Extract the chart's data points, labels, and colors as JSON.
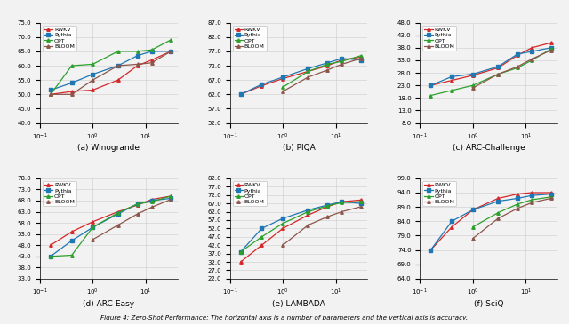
{
  "x_params": [
    0.16,
    0.4,
    1.0,
    3.0,
    7.0,
    13.0,
    30.0
  ],
  "models": [
    "RWKV",
    "Pythia",
    "OPT",
    "BLOOM"
  ],
  "colors": [
    "#d62728",
    "#1f77b4",
    "#2ca02c",
    "#8c564b"
  ],
  "subplots": [
    {
      "title": "(a) Winogrande",
      "ylim": [
        40.0,
        75.0
      ],
      "yticks": [
        40.0,
        45.0,
        50.0,
        55.0,
        60.0,
        65.0,
        70.0,
        75.0
      ],
      "legend_loc": "upper left",
      "data": {
        "RWKV": [
          50.0,
          51.0,
          51.5,
          55.0,
          60.0,
          62.0,
          65.0
        ],
        "Pythia": [
          51.5,
          54.0,
          57.0,
          60.0,
          63.5,
          65.0,
          65.0
        ],
        "OPT": [
          50.0,
          60.0,
          60.5,
          65.0,
          65.0,
          65.5,
          69.0
        ],
        "BLOOM": [
          50.0,
          50.0,
          55.0,
          60.0,
          60.5,
          61.0,
          65.0
        ]
      }
    },
    {
      "title": "(b) PIQA",
      "ylim": [
        52.0,
        87.0
      ],
      "yticks": [
        52.0,
        57.0,
        62.0,
        67.0,
        72.0,
        77.0,
        82.0,
        87.0
      ],
      "legend_loc": "upper left",
      "data": {
        "RWKV": [
          62.0,
          65.0,
          67.5,
          70.0,
          72.0,
          74.0,
          75.0
        ],
        "Pythia": [
          62.0,
          65.5,
          68.0,
          71.0,
          73.0,
          74.5,
          74.0
        ],
        "OPT": [
          null,
          null,
          64.5,
          70.0,
          72.5,
          73.5,
          75.5
        ],
        "BLOOM": [
          null,
          null,
          63.0,
          68.0,
          70.5,
          72.5,
          74.5
        ]
      }
    },
    {
      "title": "(c) ARC-Challenge",
      "ylim": [
        8.0,
        48.0
      ],
      "yticks": [
        8.0,
        13.0,
        18.0,
        23.0,
        28.0,
        33.0,
        38.0,
        43.0,
        48.0
      ],
      "legend_loc": "upper left",
      "data": {
        "RWKV": [
          23.0,
          25.0,
          27.0,
          30.0,
          35.0,
          38.0,
          40.0
        ],
        "Pythia": [
          23.0,
          26.5,
          27.5,
          30.5,
          35.5,
          36.5,
          38.0
        ],
        "OPT": [
          19.0,
          21.0,
          23.0,
          27.5,
          30.0,
          33.0,
          37.5
        ],
        "BLOOM": [
          null,
          null,
          22.0,
          27.5,
          30.5,
          33.5,
          37.0
        ]
      }
    },
    {
      "title": "(d) ARC-Easy",
      "ylim": [
        33.0,
        78.0
      ],
      "yticks": [
        33.0,
        38.0,
        43.0,
        48.0,
        53.0,
        58.0,
        63.0,
        68.0,
        73.0,
        78.0
      ],
      "legend_loc": "upper left",
      "data": {
        "RWKV": [
          48.0,
          54.0,
          58.5,
          63.0,
          66.0,
          68.5,
          70.0
        ],
        "Pythia": [
          43.0,
          50.0,
          56.0,
          62.0,
          66.5,
          68.0,
          69.0
        ],
        "OPT": [
          43.0,
          43.5,
          56.0,
          62.5,
          66.5,
          67.5,
          70.0
        ],
        "BLOOM": [
          null,
          null,
          50.5,
          57.0,
          62.0,
          65.0,
          68.5
        ]
      }
    },
    {
      "title": "(e) LAMBADA",
      "ylim": [
        22.0,
        82.0
      ],
      "yticks": [
        22.0,
        27.0,
        32.0,
        37.0,
        42.0,
        47.0,
        52.0,
        57.0,
        62.0,
        67.0,
        72.0,
        77.0,
        82.0
      ],
      "legend_loc": "upper left",
      "data": {
        "RWKV": [
          32.0,
          42.0,
          52.0,
          60.0,
          65.0,
          68.0,
          69.0
        ],
        "Pythia": [
          38.0,
          52.0,
          58.0,
          63.0,
          66.0,
          68.0,
          67.0
        ],
        "OPT": [
          38.0,
          47.0,
          55.0,
          62.0,
          65.5,
          67.5,
          68.0
        ],
        "BLOOM": [
          null,
          null,
          42.0,
          54.0,
          59.0,
          62.0,
          65.0
        ]
      }
    },
    {
      "title": "(f) SciQ",
      "ylim": [
        64.0,
        99.0
      ],
      "yticks": [
        64.0,
        69.0,
        74.0,
        79.0,
        84.0,
        89.0,
        94.0,
        99.0
      ],
      "legend_loc": "upper left",
      "data": {
        "RWKV": [
          74.0,
          82.0,
          88.0,
          92.0,
          93.5,
          94.0,
          94.0
        ],
        "Pythia": [
          74.0,
          84.0,
          88.0,
          91.0,
          92.0,
          93.0,
          93.5
        ],
        "OPT": [
          null,
          null,
          82.0,
          87.0,
          90.0,
          91.5,
          92.5
        ],
        "BLOOM": [
          null,
          null,
          78.0,
          85.0,
          88.5,
          90.5,
          92.0
        ]
      }
    }
  ],
  "caption": "Figure 4: Zero-Shot Performance: The horizontal axis is a number of parameters and the vertical axis is accuracy.",
  "bg_color": "#f2f2f2"
}
